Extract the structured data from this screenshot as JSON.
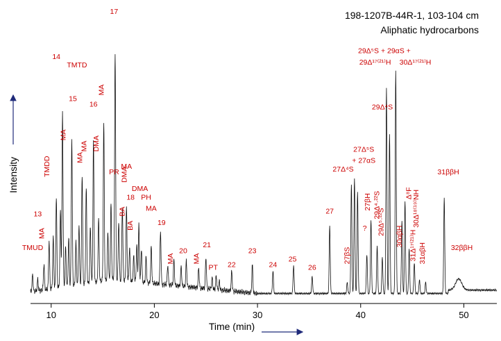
{
  "chart_data": {
    "type": "line",
    "title": "198-1207B-44R-1, 103-104 cm",
    "subtitle": "Aliphatic hydrocarbons",
    "xlabel": "Time (min)",
    "ylabel": "Intensity",
    "xlim": [
      8,
      53.2
    ],
    "ylim": [
      0,
      100
    ],
    "x_ticks": [
      "10",
      "20",
      "30",
      "40",
      "50"
    ],
    "x_tick_values": [
      10,
      20,
      30,
      40,
      50
    ],
    "grid": false,
    "peaks": [
      {
        "x": 8.2,
        "y": 6,
        "w": 0.05
      },
      {
        "x": 8.7,
        "y": 4,
        "w": 0.05
      },
      {
        "x": 9.3,
        "y": 9,
        "w": 0.05
      },
      {
        "x": 9.8,
        "y": 17,
        "w": 0.05
      },
      {
        "x": 10.2,
        "y": 18,
        "w": 0.05
      },
      {
        "x": 10.5,
        "y": 32,
        "w": 0.05
      },
      {
        "x": 10.9,
        "y": 27,
        "w": 0.05
      },
      {
        "x": 11.1,
        "y": 62,
        "w": 0.05
      },
      {
        "x": 11.4,
        "y": 14,
        "w": 0.05
      },
      {
        "x": 11.7,
        "y": 17,
        "w": 0.05
      },
      {
        "x": 12.0,
        "y": 52,
        "w": 0.05
      },
      {
        "x": 12.4,
        "y": 15,
        "w": 0.05
      },
      {
        "x": 12.7,
        "y": 21,
        "w": 0.05
      },
      {
        "x": 13.0,
        "y": 39,
        "w": 0.05
      },
      {
        "x": 13.4,
        "y": 34,
        "w": 0.05
      },
      {
        "x": 13.8,
        "y": 20,
        "w": 0.05
      },
      {
        "x": 14.1,
        "y": 50,
        "w": 0.05
      },
      {
        "x": 14.6,
        "y": 22,
        "w": 0.05
      },
      {
        "x": 15.1,
        "y": 56,
        "w": 0.05
      },
      {
        "x": 15.5,
        "y": 17,
        "w": 0.05
      },
      {
        "x": 15.8,
        "y": 27,
        "w": 0.05
      },
      {
        "x": 16.2,
        "y": 81,
        "w": 0.05
      },
      {
        "x": 16.55,
        "y": 21,
        "w": 0.05
      },
      {
        "x": 16.9,
        "y": 26,
        "w": 0.05
      },
      {
        "x": 17.3,
        "y": 26,
        "w": 0.05
      },
      {
        "x": 17.6,
        "y": 12,
        "w": 0.05
      },
      {
        "x": 18.0,
        "y": 9,
        "w": 0.05
      },
      {
        "x": 18.3,
        "y": 13,
        "w": 0.05
      },
      {
        "x": 18.5,
        "y": 20,
        "w": 0.05
      },
      {
        "x": 18.75,
        "y": 12,
        "w": 0.05
      },
      {
        "x": 19.2,
        "y": 9,
        "w": 0.05
      },
      {
        "x": 19.7,
        "y": 13,
        "w": 0.05
      },
      {
        "x": 20.6,
        "y": 19,
        "w": 0.05
      },
      {
        "x": 21.3,
        "y": 7,
        "w": 0.05
      },
      {
        "x": 21.9,
        "y": 9,
        "w": 0.05
      },
      {
        "x": 22.6,
        "y": 7,
        "w": 0.05
      },
      {
        "x": 23.1,
        "y": 9,
        "w": 0.05
      },
      {
        "x": 24.3,
        "y": 7,
        "w": 0.05
      },
      {
        "x": 25.0,
        "y": 11,
        "w": 0.05
      },
      {
        "x": 25.6,
        "y": 4,
        "w": 0.05
      },
      {
        "x": 26.0,
        "y": 5,
        "w": 0.05
      },
      {
        "x": 26.3,
        "y": 3,
        "w": 0.05
      },
      {
        "x": 27.5,
        "y": 7,
        "w": 0.05
      },
      {
        "x": 29.5,
        "y": 10,
        "w": 0.05
      },
      {
        "x": 31.5,
        "y": 8,
        "w": 0.05
      },
      {
        "x": 33.5,
        "y": 10,
        "w": 0.05
      },
      {
        "x": 35.3,
        "y": 6,
        "w": 0.05
      },
      {
        "x": 37.0,
        "y": 24,
        "w": 0.05
      },
      {
        "x": 38.7,
        "y": 4,
        "w": 0.05
      },
      {
        "x": 39.1,
        "y": 39,
        "w": 0.05
      },
      {
        "x": 39.4,
        "y": 41,
        "w": 0.05
      },
      {
        "x": 39.7,
        "y": 36,
        "w": 0.05
      },
      {
        "x": 40.6,
        "y": 14,
        "w": 0.05
      },
      {
        "x": 41.0,
        "y": 26,
        "w": 0.05
      },
      {
        "x": 41.6,
        "y": 17,
        "w": 0.05
      },
      {
        "x": 42.1,
        "y": 13,
        "w": 0.05
      },
      {
        "x": 42.5,
        "y": 73,
        "w": 0.05
      },
      {
        "x": 42.8,
        "y": 57,
        "w": 0.05
      },
      {
        "x": 43.4,
        "y": 79,
        "w": 0.05
      },
      {
        "x": 44.0,
        "y": 26,
        "w": 0.05
      },
      {
        "x": 44.3,
        "y": 33,
        "w": 0.05
      },
      {
        "x": 44.7,
        "y": 16,
        "w": 0.05
      },
      {
        "x": 45.2,
        "y": 11,
        "w": 0.05
      },
      {
        "x": 45.7,
        "y": 5,
        "w": 0.05
      },
      {
        "x": 46.3,
        "y": 4,
        "w": 0.05
      },
      {
        "x": 48.1,
        "y": 34,
        "w": 0.05
      },
      {
        "x": 49.5,
        "y": 4,
        "w": 0.3
      }
    ],
    "peak_labels": [
      {
        "text": "TMUD",
        "x": 8.2,
        "y": 16,
        "rot": false
      },
      {
        "text": "13",
        "x": 8.7,
        "y": 28,
        "rot": false
      },
      {
        "text": "MA",
        "x": 9.3,
        "y": 20,
        "rot": true
      },
      {
        "text": "TMDD",
        "x": 9.8,
        "y": 42,
        "rot": true
      },
      {
        "text": "14",
        "x": 10.5,
        "y": 84,
        "rot": false
      },
      {
        "text": "TMTD",
        "x": 12.5,
        "y": 81,
        "rot": false
      },
      {
        "text": "15",
        "x": 12.1,
        "y": 69,
        "rot": false
      },
      {
        "text": "MA",
        "x": 11.4,
        "y": 55,
        "rot": true
      },
      {
        "text": "MA",
        "x": 13.0,
        "y": 47,
        "rot": true
      },
      {
        "text": "MA",
        "x": 13.4,
        "y": 51,
        "rot": true
      },
      {
        "text": "16",
        "x": 14.1,
        "y": 67,
        "rot": false
      },
      {
        "text": "DMA",
        "x": 14.6,
        "y": 51,
        "rot": true
      },
      {
        "text": "MA",
        "x": 15.1,
        "y": 71,
        "rot": true
      },
      {
        "text": "17",
        "x": 16.1,
        "y": 100,
        "rot": false
      },
      {
        "text": "PR",
        "x": 16.1,
        "y": 43,
        "rot": false
      },
      {
        "text": "MA",
        "x": 17.3,
        "y": 45,
        "rot": false
      },
      {
        "text": "DMA",
        "x": 17.3,
        "y": 40,
        "rot": true
      },
      {
        "text": "BA",
        "x": 17.1,
        "y": 28,
        "rot": true
      },
      {
        "text": "18",
        "x": 17.7,
        "y": 34,
        "rot": false
      },
      {
        "text": "DMA",
        "x": 18.6,
        "y": 37,
        "rot": false
      },
      {
        "text": "PH",
        "x": 19.2,
        "y": 34,
        "rot": false
      },
      {
        "text": "BA",
        "x": 17.9,
        "y": 23,
        "rot": true
      },
      {
        "text": "MA",
        "x": 19.7,
        "y": 30,
        "rot": false
      },
      {
        "text": "19",
        "x": 20.7,
        "y": 25,
        "rot": false
      },
      {
        "text": "MA",
        "x": 21.8,
        "y": 11,
        "rot": true
      },
      {
        "text": "20",
        "x": 22.8,
        "y": 15,
        "rot": false
      },
      {
        "text": "MA",
        "x": 24.3,
        "y": 11,
        "rot": true
      },
      {
        "text": "21",
        "x": 25.1,
        "y": 17,
        "rot": false
      },
      {
        "text": "PT",
        "x": 25.7,
        "y": 9,
        "rot": false
      },
      {
        "text": "22",
        "x": 27.5,
        "y": 10,
        "rot": false
      },
      {
        "text": "23",
        "x": 29.5,
        "y": 15,
        "rot": false
      },
      {
        "text": "24",
        "x": 31.5,
        "y": 10,
        "rot": false
      },
      {
        "text": "25",
        "x": 33.4,
        "y": 12,
        "rot": false
      },
      {
        "text": "26",
        "x": 35.3,
        "y": 9,
        "rot": false
      },
      {
        "text": "27",
        "x": 37.0,
        "y": 29,
        "rot": false
      },
      {
        "text": "27βS",
        "x": 38.9,
        "y": 11,
        "rot": true
      },
      {
        "text": "27Δ⁴S",
        "x": 38.3,
        "y": 44,
        "rot": false
      },
      {
        "text": "27Δ⁵S",
        "x": 40.3,
        "y": 51,
        "rot": false
      },
      {
        "text": "+ 27αS",
        "x": 40.3,
        "y": 47,
        "rot": false
      },
      {
        "text": "?",
        "x": 40.4,
        "y": 23,
        "rot": false
      },
      {
        "text": "27βH",
        "x": 40.9,
        "y": 30,
        "rot": true
      },
      {
        "text": "29Δ⁴·²²S",
        "x": 41.8,
        "y": 27,
        "rot": true
      },
      {
        "text": "29Δ⁵·²²S",
        "x": 42.2,
        "y": 21,
        "rot": true
      },
      {
        "text": "29Δ⁴S",
        "x": 42.1,
        "y": 66,
        "rot": false
      },
      {
        "text": "29Δ⁵S + 29αS +",
        "x": 42.3,
        "y": 86,
        "rot": false
      },
      {
        "text": "29Δ¹⁷⁽²¹⁾H",
        "x": 41.4,
        "y": 82,
        "rot": false
      },
      {
        "text": "30Δ¹⁷⁽²¹⁾H",
        "x": 45.3,
        "y": 82,
        "rot": false
      },
      {
        "text": "Δ⁸F",
        "x": 44.9,
        "y": 34,
        "rot": true
      },
      {
        "text": "30αβH",
        "x": 44.0,
        "y": 17,
        "rot": true
      },
      {
        "text": "30Δ¹⁸⁽¹⁹⁾NH",
        "x": 45.6,
        "y": 24,
        "rot": true
      },
      {
        "text": "31Δ¹⁷⁽²¹⁾H",
        "x": 45.3,
        "y": 12,
        "rot": true
      },
      {
        "text": "31αβH",
        "x": 46.2,
        "y": 11,
        "rot": true
      },
      {
        "text": "31ββH",
        "x": 48.5,
        "y": 43,
        "rot": false
      },
      {
        "text": "32ββH",
        "x": 49.8,
        "y": 16,
        "rot": false
      }
    ]
  }
}
